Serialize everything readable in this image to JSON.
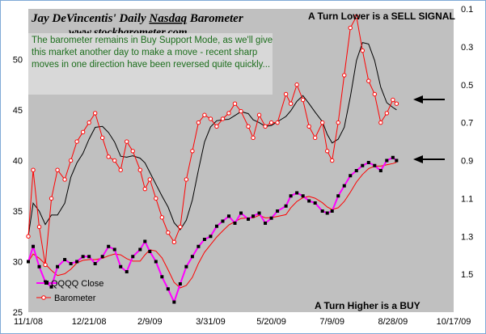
{
  "chart_data": {
    "type": "line",
    "title": "Jay DeVincentis' Daily Nasdaq Barometer",
    "subtitle": "www.stockbarometer.com",
    "title_underlined_word": "Nasdaq",
    "annotation": "The barometer remains in Buy Support Mode, as we'll give this market another day to make a move - recent sharp moves in one direction have been reversed quite quickly...",
    "corner_top_right": "A Turn Lower is a SELL  SIGNAL",
    "corner_bottom_right": "A Turn Higher is a BUY",
    "background_color": "#c0c0c0",
    "grid": false,
    "legend_position": "bottom-left",
    "x_ticks": [
      "11/1/08",
      "12/21/08",
      "2/9/09",
      "3/31/09",
      "5/20/09",
      "7/9/09",
      "8/28/09",
      "10/17/09"
    ],
    "x_range": [
      "2008-11-01",
      "2009-10-17"
    ],
    "y_left": {
      "ticks": [
        25,
        30,
        35,
        40,
        45,
        50
      ],
      "range": [
        25,
        55
      ]
    },
    "y_right": {
      "ticks": [
        "0.1",
        "0.3",
        "0.5",
        "0.7",
        "0.9",
        "1.1",
        "1.3",
        "1.5"
      ],
      "range": [
        0.1,
        1.7
      ],
      "inverted": true
    },
    "series": [
      {
        "name": "QQQQ Close",
        "axis": "left",
        "color": "#ff00ff",
        "marker_color": "#000000",
        "marker": "square",
        "moving_average_color": "#ff0000",
        "dates": [
          "2008-11-01",
          "2008-11-05",
          "2008-11-10",
          "2008-11-15",
          "2008-11-20",
          "2008-11-25",
          "2008-12-01",
          "2008-12-06",
          "2008-12-11",
          "2008-12-16",
          "2008-12-21",
          "2008-12-26",
          "2009-01-01",
          "2009-01-06",
          "2009-01-11",
          "2009-01-16",
          "2009-01-21",
          "2009-01-26",
          "2009-02-01",
          "2009-02-05",
          "2009-02-09",
          "2009-02-14",
          "2009-02-19",
          "2009-02-24",
          "2009-03-01",
          "2009-03-06",
          "2009-03-11",
          "2009-03-16",
          "2009-03-21",
          "2009-03-26",
          "2009-03-31",
          "2009-04-05",
          "2009-04-10",
          "2009-04-15",
          "2009-04-20",
          "2009-04-25",
          "2009-05-01",
          "2009-05-05",
          "2009-05-10",
          "2009-05-15",
          "2009-05-20",
          "2009-05-25",
          "2009-06-01",
          "2009-06-05",
          "2009-06-10",
          "2009-06-15",
          "2009-06-20",
          "2009-06-25",
          "2009-07-01",
          "2009-07-05",
          "2009-07-09",
          "2009-07-14",
          "2009-07-19",
          "2009-07-24",
          "2009-07-29",
          "2009-08-03",
          "2009-08-08",
          "2009-08-13",
          "2009-08-18",
          "2009-08-23",
          "2009-08-28",
          "2009-08-31"
        ],
        "values": [
          30.0,
          31.5,
          29.5,
          28.0,
          27.5,
          29.5,
          30.2,
          29.8,
          30.0,
          30.5,
          30.5,
          29.8,
          30.5,
          31.5,
          31.2,
          29.5,
          29.0,
          30.5,
          31.2,
          32.0,
          31.0,
          30.0,
          28.5,
          27.3,
          26.0,
          27.8,
          29.5,
          30.5,
          31.5,
          32.2,
          32.5,
          33.5,
          34.0,
          34.5,
          33.8,
          34.8,
          34.2,
          34.5,
          34.8,
          33.8,
          34.3,
          35.0,
          35.5,
          36.5,
          36.8,
          36.5,
          36.0,
          35.8,
          35.0,
          34.8,
          35.0,
          36.5,
          37.5,
          38.5,
          39.0,
          39.5,
          39.8,
          39.5,
          39.0,
          40.0,
          40.3,
          40.0
        ]
      },
      {
        "name": "Barometer",
        "axis": "right",
        "color": "#ff0000",
        "marker": "circle",
        "moving_average_color": "#000000",
        "dates": [
          "2008-11-01",
          "2008-11-05",
          "2008-11-10",
          "2008-11-15",
          "2008-11-20",
          "2008-11-25",
          "2008-12-01",
          "2008-12-06",
          "2008-12-11",
          "2008-12-16",
          "2008-12-21",
          "2008-12-26",
          "2009-01-01",
          "2009-01-06",
          "2009-01-11",
          "2009-01-16",
          "2009-01-21",
          "2009-01-26",
          "2009-02-01",
          "2009-02-05",
          "2009-02-09",
          "2009-02-14",
          "2009-02-19",
          "2009-02-24",
          "2009-03-01",
          "2009-03-06",
          "2009-03-11",
          "2009-03-16",
          "2009-03-21",
          "2009-03-26",
          "2009-03-31",
          "2009-04-05",
          "2009-04-10",
          "2009-04-15",
          "2009-04-20",
          "2009-04-25",
          "2009-05-01",
          "2009-05-05",
          "2009-05-10",
          "2009-05-15",
          "2009-05-20",
          "2009-05-25",
          "2009-06-01",
          "2009-06-05",
          "2009-06-10",
          "2009-06-15",
          "2009-06-20",
          "2009-06-25",
          "2009-07-01",
          "2009-07-05",
          "2009-07-09",
          "2009-07-14",
          "2009-07-19",
          "2009-07-24",
          "2009-07-29",
          "2009-08-03",
          "2009-08-08",
          "2009-08-13",
          "2009-08-18",
          "2009-08-23",
          "2009-08-28",
          "2009-08-31"
        ],
        "values": [
          1.3,
          0.95,
          1.25,
          1.45,
          1.1,
          0.95,
          1.0,
          0.9,
          0.8,
          0.75,
          0.7,
          0.65,
          0.78,
          0.88,
          0.9,
          0.95,
          0.8,
          0.85,
          0.95,
          1.05,
          1.0,
          1.1,
          1.2,
          1.28,
          1.33,
          1.25,
          1.0,
          0.85,
          0.7,
          0.66,
          0.68,
          0.72,
          0.68,
          0.65,
          0.6,
          0.64,
          0.72,
          0.78,
          0.66,
          0.72,
          0.7,
          0.7,
          0.55,
          0.6,
          0.5,
          0.58,
          0.72,
          0.78,
          0.7,
          0.85,
          0.9,
          0.7,
          0.45,
          0.2,
          0.14,
          0.32,
          0.48,
          0.55,
          0.7,
          0.65,
          0.58,
          0.6
        ]
      }
    ]
  }
}
